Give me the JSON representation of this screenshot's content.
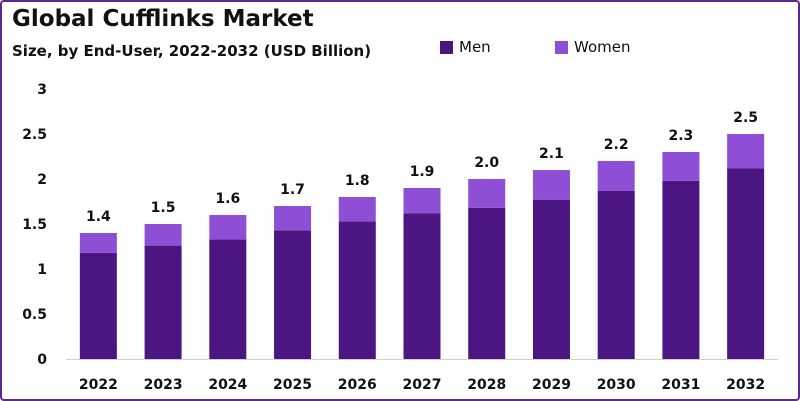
{
  "chart_data": {
    "type": "bar",
    "stacked": true,
    "title": "Global Cufflinks Market",
    "subtitle": "Size, by End-User, 2022-2032 (USD Billion)",
    "xlabel": "",
    "ylabel": "",
    "ylim": [
      0,
      3
    ],
    "yticks": [
      "0",
      "0.5",
      "1",
      "1.5",
      "2",
      "2.5",
      "3"
    ],
    "categories": [
      "2022",
      "2023",
      "2024",
      "2025",
      "2026",
      "2027",
      "2028",
      "2029",
      "2030",
      "2031",
      "2032"
    ],
    "series": [
      {
        "name": "Men",
        "color": "#4b1582",
        "values": [
          1.18,
          1.26,
          1.33,
          1.43,
          1.53,
          1.62,
          1.68,
          1.77,
          1.87,
          1.98,
          2.12
        ]
      },
      {
        "name": "Women",
        "color": "#8e4fd6",
        "values": [
          0.22,
          0.24,
          0.27,
          0.27,
          0.27,
          0.28,
          0.32,
          0.33,
          0.33,
          0.32,
          0.38
        ]
      }
    ],
    "totals": [
      "1.4",
      "1.5",
      "1.6",
      "1.7",
      "1.8",
      "1.9",
      "2.0",
      "2.1",
      "2.2",
      "2.3",
      "2.5"
    ],
    "grid": false,
    "legend_position": "top-right"
  },
  "colors": {
    "men": "#4b1582",
    "women": "#8e4fd6",
    "frame": "#5b2a8c"
  }
}
